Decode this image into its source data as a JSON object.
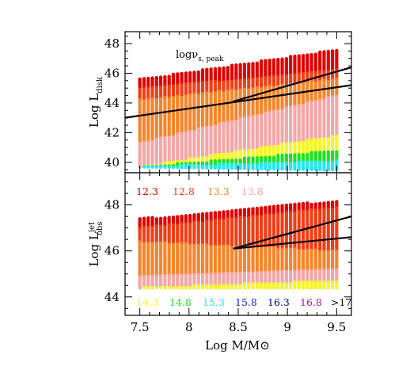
{
  "chart_data": [
    {
      "type": "scatter",
      "panel": "top",
      "xlabel": "Log M/M⊙",
      "ylabel": "Log L_disk",
      "ylabel_main": "Log L",
      "ylabel_sub": "disk",
      "xlim": [
        7.35,
        9.65
      ],
      "ylim": [
        39.3,
        48.8
      ],
      "x_ticks": [
        7.5,
        8,
        8.5,
        9,
        9.5
      ],
      "y_ticks": [
        40,
        42,
        44,
        46,
        48
      ],
      "annotation": "logν",
      "annotation_sub": "s, peak",
      "grid": false,
      "mass_grid": {
        "x_start": 7.5,
        "x_end": 9.5,
        "n_columns": 48
      },
      "bands_by_mass": [
        {
          "log_nu": "12.3",
          "color": "#e00000",
          "lower": [
            45.0,
            46.2
          ],
          "upper": [
            45.6,
            47.6
          ]
        },
        {
          "log_nu": "12.8",
          "color": "#f03c14",
          "lower": [
            44.2,
            45.6
          ],
          "upper": [
            45.0,
            46.2
          ]
        },
        {
          "log_nu": "13.3",
          "color": "#f5842a",
          "lower": [
            41.3,
            44.5
          ],
          "upper": [
            44.2,
            45.6
          ]
        },
        {
          "log_nu": "13.8",
          "color": "#f4a6a6",
          "lower": [
            39.7,
            41.8
          ],
          "upper": [
            41.3,
            44.5
          ]
        },
        {
          "log_nu": "14.3",
          "color": "#f5f526",
          "lower": [
            39.7,
            40.8
          ],
          "upper": [
            39.7,
            41.8
          ]
        },
        {
          "log_nu": "14.8",
          "color": "#22e022",
          "lower": [
            39.7,
            40.1
          ],
          "upper": [
            39.7,
            40.8
          ]
        },
        {
          "log_nu": "15.3",
          "color": "#22e8f0",
          "lower": [
            39.7,
            39.5
          ],
          "upper": [
            39.7,
            40.1
          ]
        }
      ],
      "lines": [
        {
          "x": [
            7.35,
            9.65
          ],
          "y": [
            43.0,
            45.2
          ]
        },
        {
          "x": [
            8.45,
            9.65
          ],
          "y": [
            44.1,
            46.4
          ]
        }
      ]
    },
    {
      "type": "scatter",
      "panel": "bottom",
      "xlabel": "Log M/M⊙",
      "ylabel": "Log L_obs^jet",
      "ylabel_main": "Log L",
      "ylabel_sup": "jet",
      "ylabel_sub": "obs",
      "xlim": [
        7.35,
        9.65
      ],
      "ylim": [
        43.2,
        49.4
      ],
      "x_ticks": [
        7.5,
        8,
        8.5,
        9,
        9.5
      ],
      "y_ticks": [
        44,
        46,
        48
      ],
      "grid": false,
      "mass_grid": {
        "x_start": 7.5,
        "x_end": 9.5,
        "n_columns": 48
      },
      "bands_by_mass": [
        {
          "log_nu": "12.3",
          "color": "#e00000",
          "lower": [
            47.0,
            47.9
          ],
          "upper": [
            47.4,
            48.2
          ]
        },
        {
          "log_nu": "12.8",
          "color": "#f03c14",
          "lower": [
            46.4,
            46.0
          ],
          "upper": [
            47.0,
            47.9
          ]
        },
        {
          "log_nu": "13.3",
          "color": "#f5842a",
          "lower": [
            44.9,
            45.2
          ],
          "upper": [
            46.4,
            46.0
          ]
        },
        {
          "log_nu": "13.8",
          "color": "#f4a6a6",
          "lower": [
            44.4,
            44.7
          ],
          "upper": [
            44.9,
            45.2
          ]
        },
        {
          "log_nu": "14.3",
          "color": "#f5f526",
          "lower": [
            44.4,
            44.4
          ],
          "upper": [
            44.4,
            44.7
          ]
        }
      ],
      "lines": [
        {
          "x": [
            8.45,
            9.65
          ],
          "y": [
            46.1,
            47.5
          ]
        },
        {
          "x": [
            8.45,
            9.65
          ],
          "y": [
            46.1,
            46.6
          ]
        }
      ],
      "legend": [
        {
          "label": "12.3",
          "color": "#e00000"
        },
        {
          "label": "12.8",
          "color": "#f03c14"
        },
        {
          "label": "13.3",
          "color": "#f5842a"
        },
        {
          "label": "13.8",
          "color": "#f4a6a6"
        },
        {
          "label": "14.3",
          "color": "#f5f526"
        },
        {
          "label": "14.8",
          "color": "#22e022"
        },
        {
          "label": "15.3",
          "color": "#22e8f0"
        },
        {
          "label": "15.8",
          "color": "#1a1ad8"
        },
        {
          "label": "16.3",
          "color": "#00008a"
        },
        {
          "label": "16.8",
          "color": "#9a1a9a"
        },
        {
          "label": ">17",
          "color": "#000000"
        }
      ]
    }
  ]
}
